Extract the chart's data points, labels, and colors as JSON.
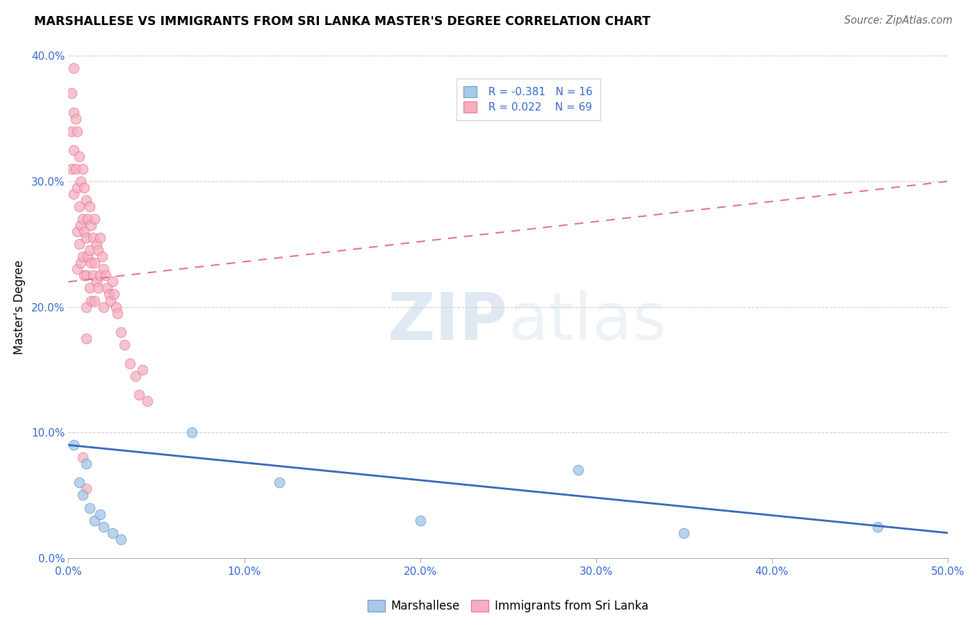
{
  "title": "MARSHALLESE VS IMMIGRANTS FROM SRI LANKA MASTER'S DEGREE CORRELATION CHART",
  "source": "Source: ZipAtlas.com",
  "ylabel": "Master's Degree",
  "xlim": [
    0.0,
    0.5
  ],
  "ylim": [
    0.0,
    0.4
  ],
  "xticks": [
    0.0,
    0.1,
    0.2,
    0.3,
    0.4,
    0.5
  ],
  "yticks": [
    0.0,
    0.1,
    0.2,
    0.3,
    0.4
  ],
  "xtick_labels": [
    "0.0%",
    "10.0%",
    "20.0%",
    "30.0%",
    "40.0%",
    "50.0%"
  ],
  "ytick_labels": [
    "0.0%",
    "10.0%",
    "20.0%",
    "30.0%",
    "40.0%"
  ],
  "blue_fill": "#a8c8e8",
  "blue_edge": "#6699cc",
  "blue_line": "#3366bb",
  "pink_fill": "#f4b0c0",
  "pink_edge": "#e87090",
  "pink_line": "#e07090",
  "legend_r_blue": "-0.381",
  "legend_n_blue": "16",
  "legend_r_pink": "0.022",
  "legend_n_pink": "69",
  "watermark_zip": "ZIP",
  "watermark_atlas": "atlas",
  "blue_scatter_x": [
    0.003,
    0.006,
    0.008,
    0.01,
    0.012,
    0.015,
    0.018,
    0.02,
    0.025,
    0.03,
    0.12,
    0.2,
    0.35,
    0.46,
    0.29,
    0.07
  ],
  "blue_scatter_y": [
    0.09,
    0.06,
    0.05,
    0.075,
    0.04,
    0.03,
    0.035,
    0.025,
    0.02,
    0.015,
    0.06,
    0.03,
    0.02,
    0.025,
    0.07,
    0.1
  ],
  "pink_scatter_x": [
    0.002,
    0.002,
    0.002,
    0.003,
    0.003,
    0.003,
    0.003,
    0.004,
    0.004,
    0.005,
    0.005,
    0.005,
    0.005,
    0.006,
    0.006,
    0.006,
    0.007,
    0.007,
    0.007,
    0.008,
    0.008,
    0.008,
    0.009,
    0.009,
    0.009,
    0.01,
    0.01,
    0.01,
    0.01,
    0.01,
    0.011,
    0.011,
    0.012,
    0.012,
    0.012,
    0.013,
    0.013,
    0.013,
    0.014,
    0.014,
    0.015,
    0.015,
    0.015,
    0.016,
    0.016,
    0.017,
    0.017,
    0.018,
    0.018,
    0.019,
    0.02,
    0.02,
    0.021,
    0.022,
    0.023,
    0.024,
    0.025,
    0.026,
    0.027,
    0.028,
    0.03,
    0.032,
    0.035,
    0.038,
    0.04,
    0.042,
    0.045,
    0.008,
    0.01
  ],
  "pink_scatter_y": [
    0.37,
    0.34,
    0.31,
    0.39,
    0.355,
    0.325,
    0.29,
    0.35,
    0.31,
    0.34,
    0.295,
    0.26,
    0.23,
    0.32,
    0.28,
    0.25,
    0.3,
    0.265,
    0.235,
    0.31,
    0.27,
    0.24,
    0.295,
    0.26,
    0.225,
    0.285,
    0.255,
    0.225,
    0.2,
    0.175,
    0.27,
    0.24,
    0.28,
    0.245,
    0.215,
    0.265,
    0.235,
    0.205,
    0.255,
    0.225,
    0.27,
    0.235,
    0.205,
    0.25,
    0.22,
    0.245,
    0.215,
    0.255,
    0.225,
    0.24,
    0.23,
    0.2,
    0.225,
    0.215,
    0.21,
    0.205,
    0.22,
    0.21,
    0.2,
    0.195,
    0.18,
    0.17,
    0.155,
    0.145,
    0.13,
    0.15,
    0.125,
    0.08,
    0.055
  ]
}
